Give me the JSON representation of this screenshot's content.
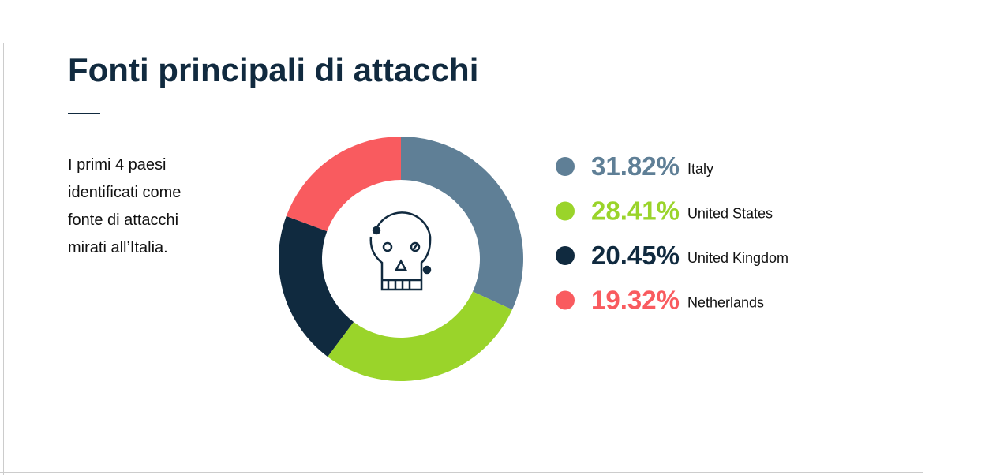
{
  "chart_data": {
    "type": "donut",
    "title": "Fonti principali di attacchi",
    "description": "I primi 4 paesi identificati come fonte di attacchi mirati all’Italia.",
    "categories": [
      "Italy",
      "United States",
      "United Kingdom",
      "Netherlands"
    ],
    "values": [
      31.82,
      28.41,
      20.45,
      19.32
    ],
    "value_labels": [
      "31.82%",
      "28.41%",
      "20.45%",
      "19.32%"
    ],
    "colors": [
      "#5f7f96",
      "#9ad42a",
      "#102a3f",
      "#f95b5f"
    ]
  }
}
